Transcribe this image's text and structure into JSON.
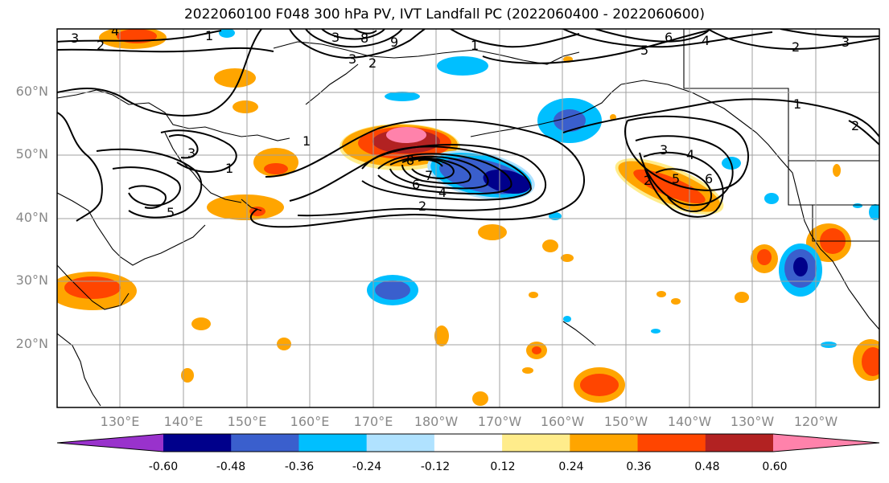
{
  "title": "2022060100 F048 300 hPa PV, IVT Landfall PC (2022060400 - 2022060600)",
  "lat_labels": [
    "60°N",
    "50°N",
    "40°N",
    "30°N",
    "20°N"
  ],
  "lon_labels": [
    "130°E",
    "140°E",
    "150°E",
    "160°E",
    "170°E",
    "180°W",
    "170°W",
    "160°W",
    "150°W",
    "140°W",
    "130°W",
    "120°W"
  ],
  "colorbar": {
    "colors": [
      "#9932cc",
      "#00008b",
      "#3a5fcd",
      "#00bfff",
      "#b0e2ff",
      "#ffffff",
      "#ffec8b",
      "#ffa500",
      "#ff4500",
      "#b22222",
      "#ff82ab"
    ],
    "tick_labels": [
      "-0.60",
      "-0.48",
      "-0.36",
      "-0.24",
      "-0.12",
      "0.12",
      "0.24",
      "0.36",
      "0.48",
      "0.60"
    ]
  },
  "contour_labels": [
    "3",
    "2",
    "4",
    "1",
    "3",
    "8",
    "9",
    "3",
    "2",
    "1",
    "6",
    "5",
    "4",
    "2",
    "3",
    "1",
    "2",
    "3",
    "1",
    "5",
    "8",
    "7",
    "6",
    "4",
    "2",
    "3",
    "4",
    "6",
    "5",
    "2",
    "1"
  ]
}
